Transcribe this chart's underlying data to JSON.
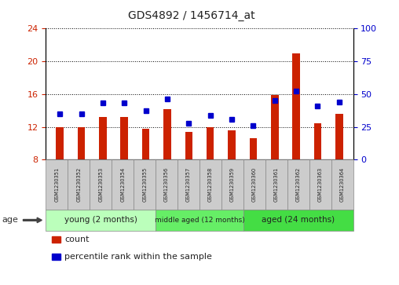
{
  "title": "GDS4892 / 1456714_at",
  "samples": [
    "GSM1230351",
    "GSM1230352",
    "GSM1230353",
    "GSM1230354",
    "GSM1230355",
    "GSM1230356",
    "GSM1230357",
    "GSM1230358",
    "GSM1230359",
    "GSM1230360",
    "GSM1230361",
    "GSM1230362",
    "GSM1230363",
    "GSM1230364"
  ],
  "counts": [
    12.0,
    12.0,
    13.2,
    13.2,
    11.8,
    14.2,
    11.4,
    12.0,
    11.6,
    10.6,
    15.9,
    21.0,
    12.4,
    13.6
  ],
  "percentiles": [
    35,
    35,
    43,
    43,
    37,
    46,
    28,
    34,
    31,
    26,
    45,
    52,
    41,
    44
  ],
  "ylim_left": [
    8,
    24
  ],
  "ylim_right": [
    0,
    100
  ],
  "yticks_left": [
    8,
    12,
    16,
    20,
    24
  ],
  "yticks_right": [
    0,
    25,
    50,
    75,
    100
  ],
  "bar_color": "#cc2200",
  "marker_color": "#0000cc",
  "bar_bottom": 8,
  "groups": [
    {
      "label": "young (2 months)",
      "start": 0,
      "end": 5,
      "color": "#bbffbb"
    },
    {
      "label": "middle aged (12 months)",
      "start": 5,
      "end": 9,
      "color": "#66ee66"
    },
    {
      "label": "aged (24 months)",
      "start": 9,
      "end": 14,
      "color": "#44dd44"
    }
  ],
  "group_label": "age",
  "legend_count_label": "count",
  "legend_pct_label": "percentile rank within the sample",
  "background_color": "#ffffff",
  "plot_bg": "#ffffff",
  "tick_label_color_left": "#cc2200",
  "tick_label_color_right": "#0000cc",
  "grid_color": "#000000",
  "sample_bg": "#cccccc"
}
